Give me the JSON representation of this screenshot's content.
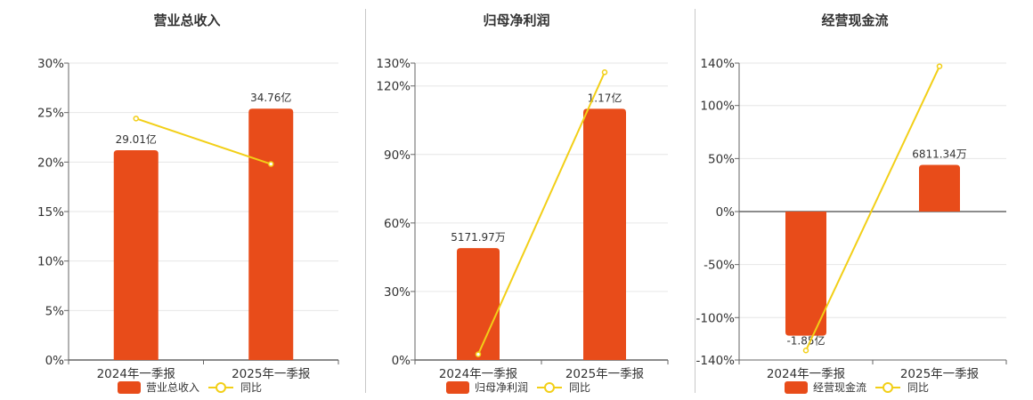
{
  "colors": {
    "bar": "#e84c1a",
    "line": "#f2cf17",
    "grid": "#e6e6e6",
    "axis": "#666666",
    "divider": "#c8c8c8"
  },
  "legend": {
    "yoy_label": "同比"
  },
  "chart_data": [
    {
      "type": "bar",
      "title": "营业总收入",
      "categories": [
        "2024年一季报",
        "2025年一季报"
      ],
      "y_ticks": [
        "0%",
        "5%",
        "10%",
        "15%",
        "20%",
        "25%",
        "30%"
      ],
      "ylim": [
        0,
        30
      ],
      "tick_values": [
        0,
        5,
        10,
        15,
        20,
        25,
        30
      ],
      "series": [
        {
          "name": "营业总收入",
          "kind": "bar",
          "values": [
            21.2,
            25.4
          ],
          "labels": [
            "29.01亿",
            "34.76亿"
          ]
        },
        {
          "name": "同比",
          "kind": "line",
          "values": [
            24.4,
            19.8
          ]
        }
      ],
      "grid": true,
      "legend_position": "bottom"
    },
    {
      "type": "bar",
      "title": "归母净利润",
      "categories": [
        "2024年一季报",
        "2025年一季报"
      ],
      "y_ticks": [
        "0%",
        "30%",
        "60%",
        "90%",
        "120%",
        "130%"
      ],
      "ylim": [
        0,
        130
      ],
      "tick_values": [
        0,
        30,
        60,
        90,
        120,
        130
      ],
      "series": [
        {
          "name": "归母净利润",
          "kind": "bar",
          "values": [
            49,
            110
          ],
          "labels": [
            "5171.97万",
            "1.17亿"
          ]
        },
        {
          "name": "同比",
          "kind": "line",
          "values": [
            2.5,
            126
          ]
        }
      ],
      "grid": true,
      "legend_position": "bottom"
    },
    {
      "type": "bar",
      "title": "经营现金流",
      "categories": [
        "2024年一季报",
        "2025年一季报"
      ],
      "y_ticks": [
        "-140%",
        "-100%",
        "-50%",
        "0%",
        "50%",
        "100%",
        "140%"
      ],
      "ylim": [
        -140,
        140
      ],
      "tick_values": [
        -140,
        -100,
        -50,
        0,
        50,
        100,
        140
      ],
      "series": [
        {
          "name": "经营现金流",
          "kind": "bar",
          "values": [
            -117,
            44
          ],
          "labels": [
            "-1.85亿",
            "6811.34万"
          ]
        },
        {
          "name": "同比",
          "kind": "line",
          "values": [
            -131,
            137
          ]
        }
      ],
      "grid": true,
      "legend_position": "bottom"
    }
  ]
}
